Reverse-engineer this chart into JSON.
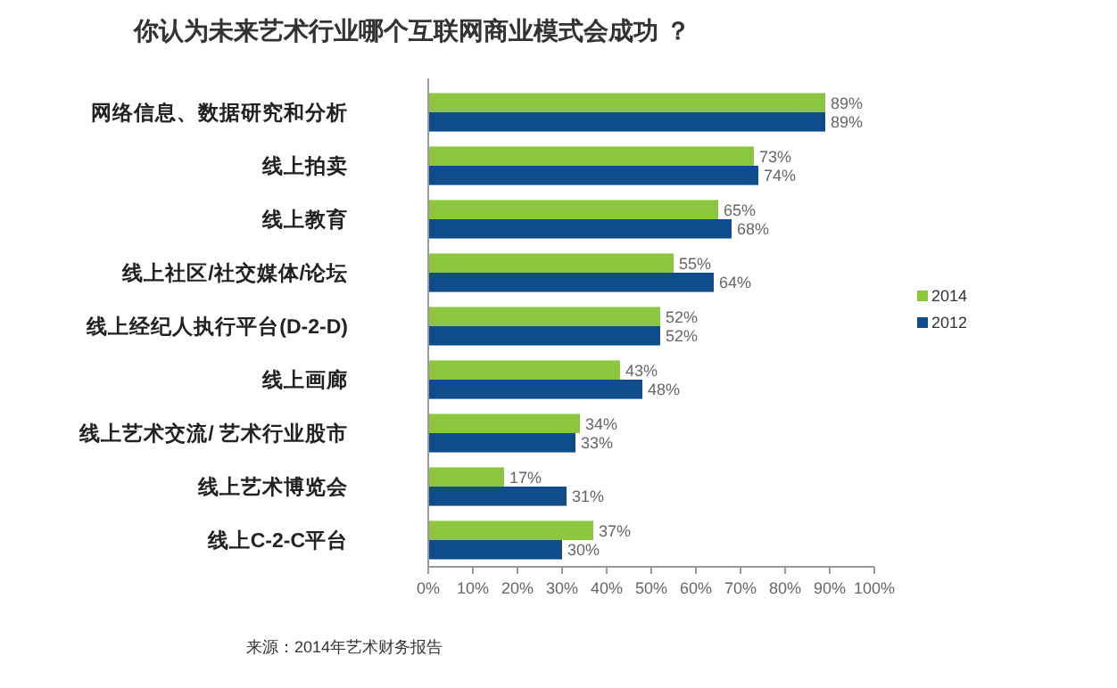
{
  "chart_data": {
    "type": "bar",
    "orientation": "horizontal",
    "title": "你认为未来艺术行业哪个互联网商业模式会成功 ？",
    "categories": [
      "网络信息、数据研究和分析",
      "线上拍卖",
      "线上教育",
      "线上社区/社交媒体/论坛",
      "线上经纪人执行平台(D-2-D)",
      "线上画廊",
      "线上艺术交流/ 艺术行业股市",
      "线上艺术博览会",
      "线上C-2-C平台"
    ],
    "series": [
      {
        "name": "2014",
        "color": "#8cc63f",
        "values": [
          89,
          73,
          65,
          55,
          52,
          43,
          34,
          17,
          37
        ],
        "value_labels": [
          "89%",
          "73%",
          "65%",
          "55%",
          "52%",
          "43%",
          "34%",
          "17%",
          "37%"
        ]
      },
      {
        "name": "2012",
        "color": "#0f4c8c",
        "values": [
          89,
          74,
          68,
          64,
          52,
          48,
          33,
          31,
          30
        ],
        "value_labels": [
          "89%",
          "74%",
          "68%",
          "64%",
          "52%",
          "48%",
          "33%",
          "31%",
          "30%"
        ]
      }
    ],
    "xlim": [
      0,
      100
    ],
    "xticks": [
      {
        "value": 0,
        "label": "0%"
      },
      {
        "value": 10,
        "label": "10%"
      },
      {
        "value": 20,
        "label": "20%"
      },
      {
        "value": 30,
        "label": "30%"
      },
      {
        "value": 40,
        "label": "40%"
      },
      {
        "value": 50,
        "label": "50%"
      },
      {
        "value": 60,
        "label": "60%"
      },
      {
        "value": 70,
        "label": "70%"
      },
      {
        "value": 80,
        "label": "80%"
      },
      {
        "value": 90,
        "label": "90%"
      },
      {
        "value": 100,
        "label": "100%"
      }
    ],
    "legend": "right",
    "grid": false,
    "annotations": [
      "来源：2014年艺术财务报告"
    ]
  }
}
